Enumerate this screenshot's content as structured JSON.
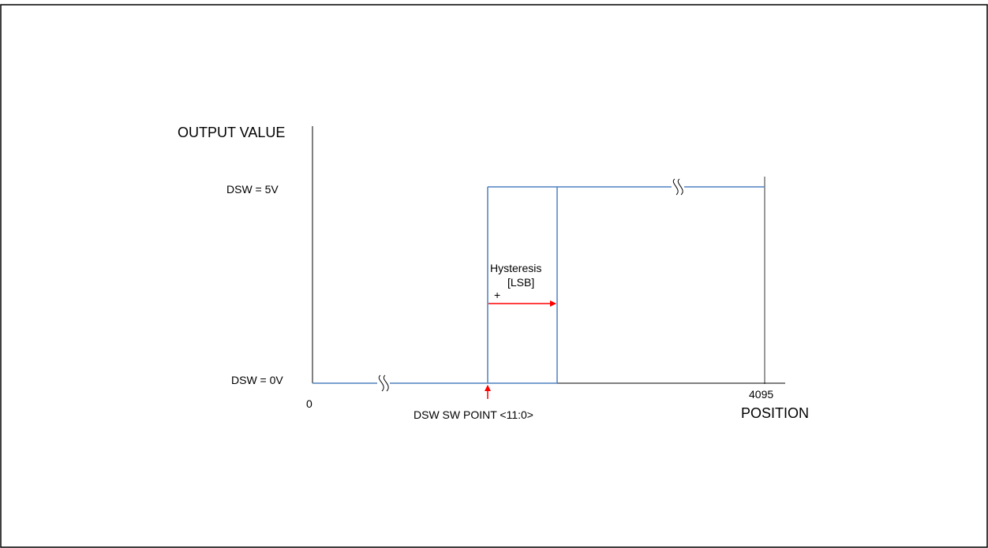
{
  "diagram": {
    "y_axis_label": "OUTPUT VALUE",
    "x_axis_label": "POSITION",
    "level_high": "DSW = 5V",
    "level_low": "DSW = 0V",
    "x_min": "0",
    "x_max": "4095",
    "switch_point": "DSW SW POINT <11:0>",
    "hysteresis_title": "Hysteresis",
    "hysteresis_unit": "[LSB]",
    "hysteresis_sign": "+",
    "colors": {
      "signal_line": "#4f81bd",
      "arrow": "#ff0000",
      "axis": "#000000"
    },
    "icons": [
      "axis-break-icon",
      "arrow-right-icon",
      "arrow-up-icon"
    ]
  }
}
